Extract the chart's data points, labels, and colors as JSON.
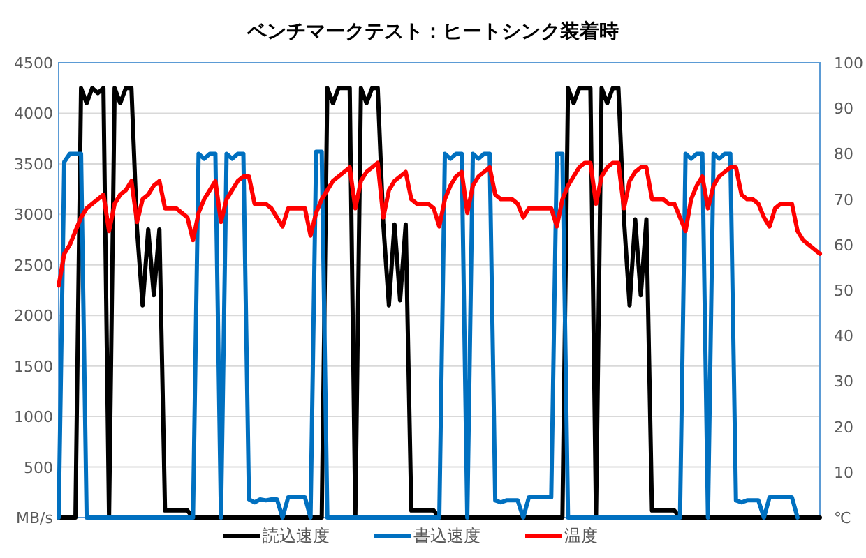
{
  "chart_data": {
    "type": "line",
    "title": "ベンチマークテスト：ヒートシンク装着時",
    "categories": [
      null,
      null,
      null,
      null,
      null,
      null,
      null,
      null,
      null,
      null,
      null,
      null,
      null,
      null,
      null,
      null,
      null,
      null,
      null,
      null,
      null,
      null,
      null,
      null,
      null,
      null,
      null,
      null,
      null,
      null,
      null,
      null,
      null,
      null,
      null,
      null,
      null,
      null,
      null,
      null,
      null,
      null,
      null,
      null,
      null,
      null,
      null,
      null,
      null,
      null,
      null,
      null,
      null,
      null,
      null,
      null,
      null,
      null,
      null,
      null,
      null,
      null,
      null,
      null,
      null,
      null,
      null,
      null,
      null,
      null,
      null,
      null,
      null,
      null,
      null,
      null,
      null,
      null,
      null,
      null,
      null,
      null,
      null,
      null,
      null,
      null,
      null,
      null,
      null,
      null,
      null,
      null,
      null,
      null,
      null,
      null,
      null,
      null,
      null,
      null,
      null,
      null,
      null,
      null,
      null,
      null,
      null,
      null,
      null,
      null,
      null,
      null,
      null,
      null,
      null,
      null,
      null,
      null,
      null,
      null,
      null,
      null,
      null,
      null,
      null,
      null,
      null,
      null,
      null,
      null,
      null,
      null,
      null,
      null,
      null,
      null,
      null
    ],
    "series": [
      {
        "name": "読込速度",
        "color": "#000000",
        "values": [
          0,
          0,
          0,
          0,
          4250,
          4100,
          4250,
          4200,
          4250,
          0,
          4250,
          4100,
          4250,
          4250,
          2850,
          2100,
          2850,
          2200,
          2850,
          70,
          70,
          70,
          70,
          70,
          0,
          0,
          0,
          0,
          0,
          0,
          0,
          0,
          0,
          0,
          0,
          0,
          0,
          0,
          0,
          0,
          0,
          0,
          0,
          0,
          0,
          0,
          0,
          0,
          4250,
          4100,
          4250,
          4250,
          4250,
          0,
          4250,
          4100,
          4250,
          4250,
          2900,
          2100,
          2900,
          2150,
          2900,
          70,
          70,
          70,
          70,
          70,
          0,
          0,
          0,
          0,
          0,
          0,
          0,
          0,
          0,
          0,
          0,
          0,
          0,
          0,
          0,
          0,
          0,
          0,
          0,
          0,
          0,
          0,
          0,
          4250,
          4100,
          4250,
          4250,
          4250,
          0,
          4250,
          4100,
          4250,
          4250,
          2950,
          2100,
          2950,
          2200,
          2950,
          70,
          70,
          70,
          70,
          70,
          0,
          0,
          0,
          0,
          0,
          0,
          0,
          0,
          0,
          0,
          0,
          0,
          0,
          0,
          0,
          0,
          0,
          0,
          0,
          0,
          0,
          0,
          0,
          0,
          0,
          0
        ]
      },
      {
        "name": "書込速度",
        "color": "#0070c0",
        "values": [
          0,
          3520,
          3600,
          3600,
          3600,
          0,
          0,
          0,
          0,
          0,
          0,
          0,
          0,
          0,
          0,
          0,
          0,
          0,
          0,
          0,
          0,
          0,
          0,
          0,
          0,
          3600,
          3550,
          3600,
          3600,
          0,
          3600,
          3550,
          3600,
          3600,
          180,
          150,
          180,
          170,
          180,
          180,
          0,
          200,
          200,
          200,
          200,
          0,
          3620,
          3620,
          0,
          0,
          0,
          0,
          0,
          0,
          0,
          0,
          0,
          0,
          0,
          0,
          0,
          0,
          0,
          0,
          0,
          0,
          0,
          0,
          0,
          3600,
          3550,
          3600,
          3600,
          0,
          3600,
          3550,
          3600,
          3600,
          170,
          150,
          170,
          170,
          170,
          0,
          200,
          200,
          200,
          200,
          200,
          3600,
          3600,
          0,
          0,
          0,
          0,
          0,
          0,
          0,
          0,
          0,
          0,
          0,
          0,
          0,
          0,
          0,
          0,
          0,
          0,
          0,
          0,
          0,
          3600,
          3550,
          3600,
          3600,
          0,
          3600,
          3550,
          3600,
          3600,
          170,
          150,
          170,
          170,
          170,
          0,
          200,
          200,
          200,
          200,
          200,
          0,
          null,
          null,
          null,
          null
        ]
      },
      {
        "name": "温度",
        "color": "#ff0000",
        "axis": "y2",
        "values": [
          51,
          58,
          60,
          63,
          66,
          68,
          69,
          70,
          71,
          63,
          69,
          71,
          72,
          74,
          65,
          70,
          71,
          73,
          74,
          68,
          68,
          68,
          67,
          66,
          61,
          67,
          70,
          72,
          74,
          65,
          70,
          72,
          74,
          75,
          75,
          69,
          69,
          69,
          68,
          66,
          64,
          68,
          68,
          68,
          68,
          62,
          67,
          70,
          72,
          74,
          75,
          76,
          77,
          68,
          74,
          76,
          77,
          78,
          66,
          72,
          74,
          75,
          76,
          70,
          69,
          69,
          69,
          68,
          64,
          70,
          73,
          75,
          76,
          67,
          73,
          75,
          76,
          77,
          71,
          70,
          70,
          70,
          69,
          66,
          68,
          68,
          68,
          68,
          68,
          64,
          70,
          73,
          75,
          77,
          78,
          78,
          69,
          75,
          77,
          78,
          78,
          68,
          74,
          76,
          77,
          77,
          70,
          70,
          70,
          69,
          69,
          66,
          63,
          70,
          73,
          75,
          68,
          73,
          75,
          76,
          77,
          77,
          71,
          70,
          70,
          69,
          66,
          64,
          68,
          69,
          69,
          69,
          63,
          61,
          60,
          59,
          58
        ]
      }
    ],
    "ylim": [
      0,
      4500
    ],
    "yticks": [
      {
        "value": 0,
        "label": "MB/s"
      },
      500,
      1000,
      1500,
      2000,
      2500,
      3000,
      3500,
      4000,
      4500
    ],
    "y2lim": [
      0,
      100
    ],
    "y2ticks": [
      {
        "value": 0,
        "label": "℃"
      },
      10,
      20,
      30,
      40,
      50,
      60,
      70,
      80,
      90,
      100
    ],
    "grid": "y",
    "legend": "bottom",
    "line_style": "solid"
  }
}
